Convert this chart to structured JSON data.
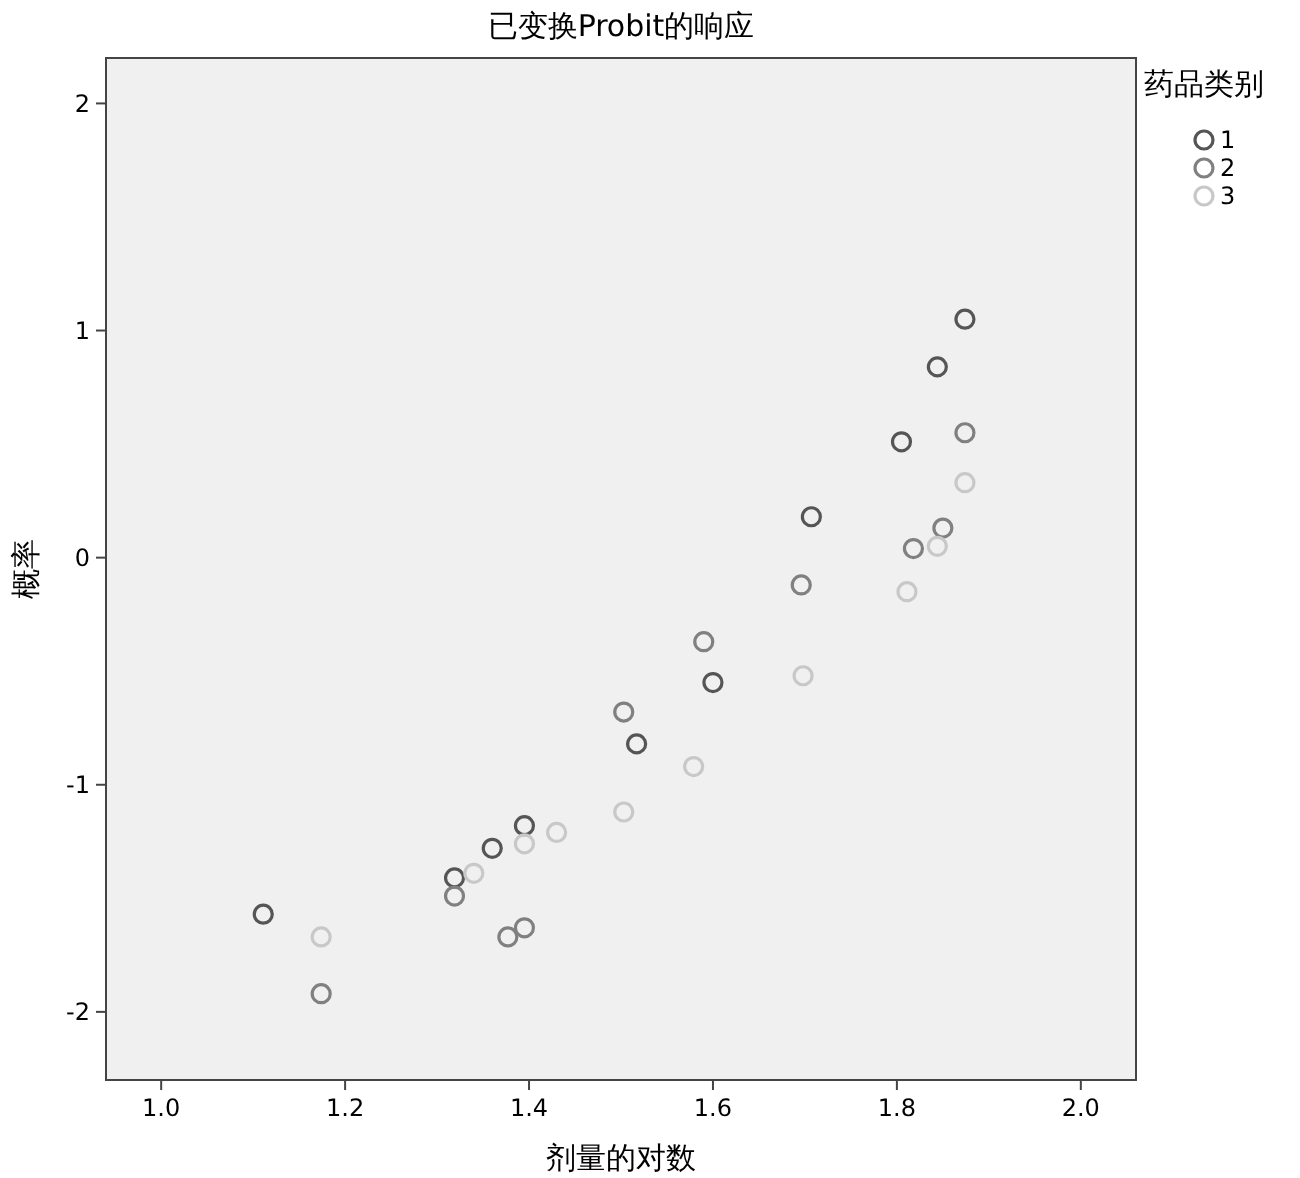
{
  "chart_data": {
    "type": "scatter",
    "title": "已变换Probit的响应",
    "xlabel": "剂量的对数",
    "ylabel": "概率",
    "legend_title": "药品类别",
    "legend": "top right",
    "marker": "circle",
    "grid": false,
    "xlim": [
      0.94,
      2.06
    ],
    "xticks": [
      {
        "value": 1,
        "label": "1.0"
      },
      {
        "value": 1.2,
        "label": "1.2"
      },
      {
        "value": 1.4,
        "label": "1.4"
      },
      {
        "value": 1.6,
        "label": "1.6"
      },
      {
        "value": 1.8,
        "label": "1.8"
      },
      {
        "value": 2,
        "label": "2.0"
      }
    ],
    "ylim": [
      -2.3,
      2.2
    ],
    "yticks": [
      -2,
      -1,
      0,
      1,
      2
    ],
    "series": [
      {
        "name": "1",
        "color": "#555555",
        "x": [
          1.111,
          1.319,
          1.36,
          1.395,
          1.517,
          1.6,
          1.707,
          1.805,
          1.844,
          1.874
        ],
        "values": [
          -1.57,
          -1.41,
          -1.28,
          -1.18,
          -0.82,
          -0.55,
          0.18,
          0.51,
          0.84,
          1.05
        ]
      },
      {
        "name": "2",
        "color": "#808080",
        "x": [
          1.174,
          1.319,
          1.377,
          1.395,
          1.503,
          1.59,
          1.696,
          1.818,
          1.85,
          1.874
        ],
        "values": [
          -1.92,
          -1.49,
          -1.67,
          -1.63,
          -0.68,
          -0.37,
          -0.12,
          0.04,
          0.13,
          0.55
        ]
      },
      {
        "name": "3",
        "color": "#c8c8c8",
        "x": [
          1.174,
          1.34,
          1.395,
          1.43,
          1.503,
          1.579,
          1.698,
          1.811,
          1.844,
          1.874
        ],
        "values": [
          -1.67,
          -1.39,
          -1.26,
          -1.21,
          -1.12,
          -0.92,
          -0.52,
          -0.15,
          0.05,
          0.33
        ]
      }
    ]
  }
}
